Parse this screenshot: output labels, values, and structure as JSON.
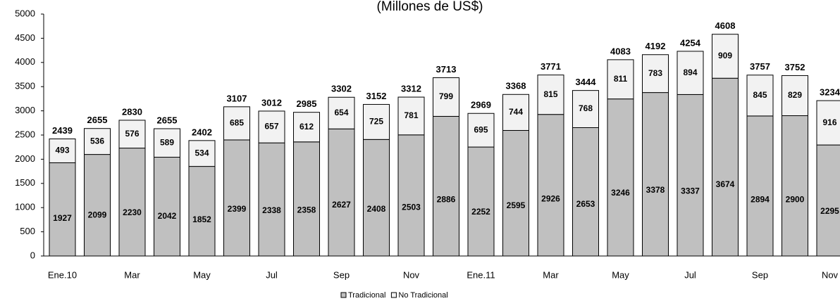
{
  "chart_data": {
    "type": "stacked_bar",
    "title": "(Millones de US$)",
    "categories": [
      "Ene.10",
      null,
      "Mar",
      null,
      "May",
      null,
      "Jul",
      null,
      "Sep",
      null,
      "Nov",
      null,
      "Ene.11",
      null,
      "Mar",
      null,
      "May",
      null,
      "Jul",
      null,
      "Sep",
      null,
      "Nov"
    ],
    "series": [
      {
        "name": "Tradicional",
        "color": "#c0c0c0",
        "values": [
          1927,
          2099,
          2230,
          2042,
          1852,
          2399,
          2338,
          2358,
          2627,
          2408,
          2503,
          2886,
          2252,
          2595,
          2926,
          2653,
          3246,
          3378,
          3337,
          3674,
          2894,
          2900,
          2295
        ]
      },
      {
        "name": "No Tradicional",
        "color": "#f2f2f2",
        "values": [
          493,
          536,
          576,
          589,
          534,
          685,
          657,
          612,
          654,
          725,
          781,
          799,
          695,
          744,
          815,
          768,
          811,
          783,
          894,
          909,
          845,
          829,
          916
        ]
      }
    ],
    "totals": [
      2439,
      2655,
      2830,
      2655,
      2402,
      3107,
      3012,
      2985,
      3302,
      3152,
      3312,
      3713,
      2969,
      3368,
      3771,
      3444,
      4083,
      4192,
      4254,
      4608,
      3757,
      3752,
      3234
    ],
    "ylim": [
      0,
      5000
    ],
    "yticks": [
      0,
      500,
      1000,
      1500,
      2000,
      2500,
      3000,
      3500,
      4000,
      4500,
      5000
    ]
  }
}
